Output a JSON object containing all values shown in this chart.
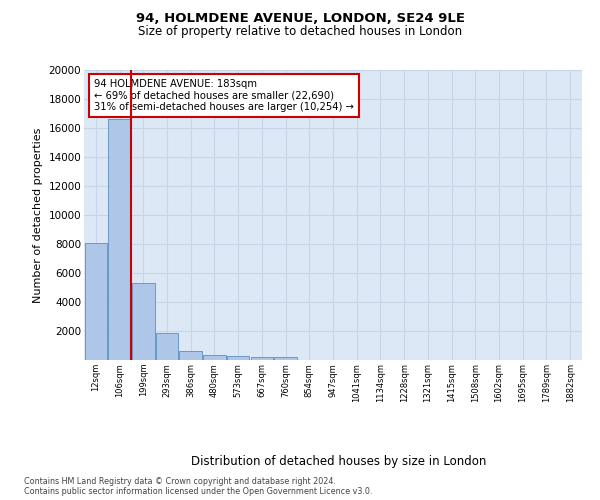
{
  "title1": "94, HOLMDENE AVENUE, LONDON, SE24 9LE",
  "title2": "Size of property relative to detached houses in London",
  "xlabel": "Distribution of detached houses by size in London",
  "ylabel": "Number of detached properties",
  "bar_labels": [
    "12sqm",
    "106sqm",
    "199sqm",
    "293sqm",
    "386sqm",
    "480sqm",
    "573sqm",
    "667sqm",
    "760sqm",
    "854sqm",
    "947sqm",
    "1041sqm",
    "1134sqm",
    "1228sqm",
    "1321sqm",
    "1415sqm",
    "1508sqm",
    "1602sqm",
    "1695sqm",
    "1789sqm",
    "1882sqm"
  ],
  "bar_values": [
    8100,
    16600,
    5300,
    1850,
    650,
    350,
    270,
    215,
    185,
    0,
    0,
    0,
    0,
    0,
    0,
    0,
    0,
    0,
    0,
    0,
    0
  ],
  "bar_color": "#aec6e8",
  "bar_edge_color": "#5a8fc0",
  "vline_color": "#cc0000",
  "annotation_text": "94 HOLMDENE AVENUE: 183sqm\n← 69% of detached houses are smaller (22,690)\n31% of semi-detached houses are larger (10,254) →",
  "annotation_box_color": "#cc0000",
  "annotation_text_color": "#000000",
  "ylim": [
    0,
    20000
  ],
  "yticks": [
    0,
    2000,
    4000,
    6000,
    8000,
    10000,
    12000,
    14000,
    16000,
    18000,
    20000
  ],
  "grid_color": "#c8d4e8",
  "bg_color": "#dce8f5",
  "footer1": "Contains HM Land Registry data © Crown copyright and database right 2024.",
  "footer2": "Contains public sector information licensed under the Open Government Licence v3.0."
}
